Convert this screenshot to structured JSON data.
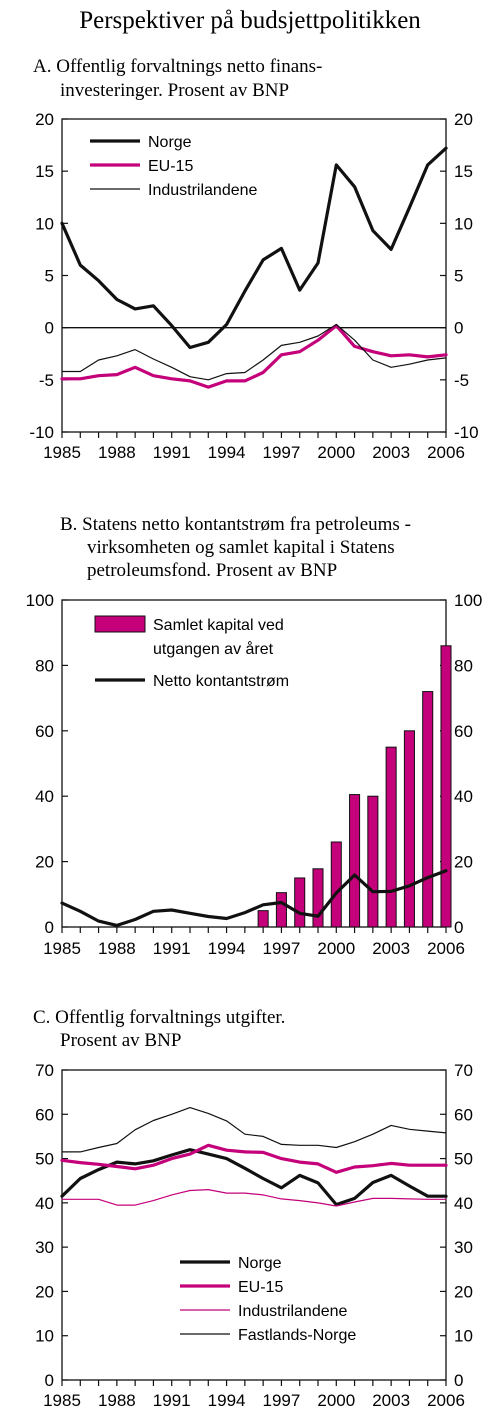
{
  "page_title": "Perspektiver på budsjettpolitikken",
  "chart_data": [
    {
      "type": "line",
      "title_lines": [
        "A.  Offentlig forvaltnings netto finans-",
        "investeringer. Prosent av BNP"
      ],
      "x": [
        1985,
        1986,
        1987,
        1988,
        1989,
        1990,
        1991,
        1992,
        1993,
        1994,
        1995,
        1996,
        1997,
        1998,
        1999,
        2000,
        2001,
        2002,
        2003,
        2004,
        2005,
        2006
      ],
      "xticks": [
        "1985",
        "1988",
        "1991",
        "1994",
        "1997",
        "2000",
        "2003",
        "2006"
      ],
      "xlim": [
        1985,
        2006
      ],
      "ylim": [
        -10,
        20
      ],
      "yticks": [
        "-10",
        "-5",
        "0",
        "5",
        "10",
        "15",
        "20"
      ],
      "zero_line": true,
      "legend_placement": "top-left",
      "series": [
        {
          "name": "Norge",
          "color": "#111111",
          "width": "thick",
          "values": [
            10,
            6,
            4.5,
            2.7,
            1.8,
            2.1,
            0.2,
            -1.9,
            -1.4,
            0.3,
            3.5,
            6.5,
            7.6,
            3.6,
            6.2,
            15.6,
            13.5,
            9.3,
            7.5,
            11.5,
            15.6,
            17.2
          ]
        },
        {
          "name": "EU-15",
          "color": "#c4007a",
          "width": "thick",
          "values": [
            -4.9,
            -4.9,
            -4.6,
            -4.5,
            -3.8,
            -4.6,
            -4.9,
            -5.1,
            -5.7,
            -5.1,
            -5.1,
            -4.3,
            -2.6,
            -2.3,
            -1.2,
            0.2,
            -1.8,
            -2.3,
            -2.7,
            -2.6,
            -2.8,
            -2.6
          ]
        },
        {
          "name": "Industrilandene",
          "color": "#111111",
          "width": "thin",
          "values": [
            -4.2,
            -4.2,
            -3.1,
            -2.7,
            -2.1,
            -3.0,
            -3.8,
            -4.7,
            -5.0,
            -4.4,
            -4.3,
            -3.1,
            -1.7,
            -1.4,
            -0.8,
            0.3,
            -1.2,
            -3.1,
            -3.8,
            -3.5,
            -3.1,
            -2.9
          ]
        }
      ]
    },
    {
      "type": "bar",
      "title_lines": [
        "B.  Statens netto kontantstrøm fra petroleums -",
        "virksomheten og samlet kapital i Statens",
        "petroleumsfond. Prosent av BNP"
      ],
      "x": [
        1985,
        1986,
        1987,
        1988,
        1989,
        1990,
        1991,
        1992,
        1993,
        1994,
        1995,
        1996,
        1997,
        1998,
        1999,
        2000,
        2001,
        2002,
        2003,
        2004,
        2005,
        2006
      ],
      "xticks": [
        "1985",
        "1988",
        "1991",
        "1994",
        "1997",
        "2000",
        "2003",
        "2006"
      ],
      "xlim": [
        1985,
        2006
      ],
      "ylim": [
        0,
        100
      ],
      "yticks": [
        "0",
        "20",
        "40",
        "60",
        "80",
        "100"
      ],
      "legend_placement": "top-left",
      "bar_series": {
        "name_lines": [
          "Samlet kapital ved",
          "utgangen av året"
        ],
        "color": "#c4007a",
        "x": [
          1996,
          1997,
          1998,
          1999,
          2000,
          2001,
          2002,
          2003,
          2004,
          2005,
          2006
        ],
        "values": [
          5,
          10.5,
          15,
          17.8,
          26,
          40.5,
          40,
          55,
          60,
          72,
          86
        ]
      },
      "line_series": {
        "name": "Netto kontantstrøm",
        "color": "#111111",
        "values": [
          7.3,
          4.8,
          1.8,
          0.5,
          2.3,
          4.8,
          5.2,
          4.2,
          3.2,
          2.6,
          4.4,
          6.8,
          7.5,
          4.2,
          3.3,
          10.4,
          15.9,
          10.8,
          10.9,
          12.6,
          15.1,
          17.2
        ]
      }
    },
    {
      "type": "line",
      "title_lines": [
        "C.  Offentlig forvaltnings utgifter.",
        "Prosent av BNP"
      ],
      "x": [
        1985,
        1986,
        1987,
        1988,
        1989,
        1990,
        1991,
        1992,
        1993,
        1994,
        1995,
        1996,
        1997,
        1998,
        1999,
        2000,
        2001,
        2002,
        2003,
        2004,
        2005,
        2006
      ],
      "xticks": [
        "1985",
        "1988",
        "1991",
        "1994",
        "1997",
        "2000",
        "2003",
        "2006"
      ],
      "xlim": [
        1985,
        2006
      ],
      "ylim": [
        0,
        70
      ],
      "yticks": [
        "0",
        "10",
        "20",
        "30",
        "40",
        "50",
        "60",
        "70"
      ],
      "zero_line": false,
      "legend_placement": "bottom-center",
      "series": [
        {
          "name": "Norge",
          "color": "#111111",
          "width": "thick",
          "values": [
            41.5,
            45.5,
            47.5,
            49.2,
            48.8,
            49.5,
            50.8,
            52,
            51,
            50,
            47.8,
            45.5,
            43.4,
            46.2,
            44.5,
            39.6,
            41,
            44.6,
            46.2,
            43.8,
            41.5,
            41.5
          ]
        },
        {
          "name": "EU-15",
          "color": "#c4007a",
          "width": "thick",
          "values": [
            49.6,
            49.1,
            48.7,
            48.2,
            47.7,
            48.5,
            50,
            51,
            53,
            51.9,
            51.5,
            51.4,
            50,
            49.2,
            48.8,
            46.9,
            48.1,
            48.4,
            48.9,
            48.5,
            48.5,
            48.5
          ]
        },
        {
          "name": "Industrilandene",
          "color": "#c4007a",
          "width": "thin",
          "values": [
            40.8,
            40.8,
            40.8,
            39.5,
            39.5,
            40.5,
            41.8,
            42.8,
            43,
            42.2,
            42.2,
            41.8,
            40.9,
            40.5,
            40,
            39.3,
            40.2,
            41,
            41,
            40.9,
            40.8,
            40.8
          ]
        },
        {
          "name": "Fastlands-Norge",
          "color": "#111111",
          "width": "thin",
          "values": [
            51.5,
            51.5,
            52.5,
            53.4,
            56.5,
            58.6,
            60,
            61.5,
            60.2,
            58.5,
            55.5,
            55,
            53.2,
            53,
            53,
            52.5,
            53.8,
            55.5,
            57.5,
            56.6,
            56.2,
            55.8
          ]
        }
      ]
    }
  ]
}
